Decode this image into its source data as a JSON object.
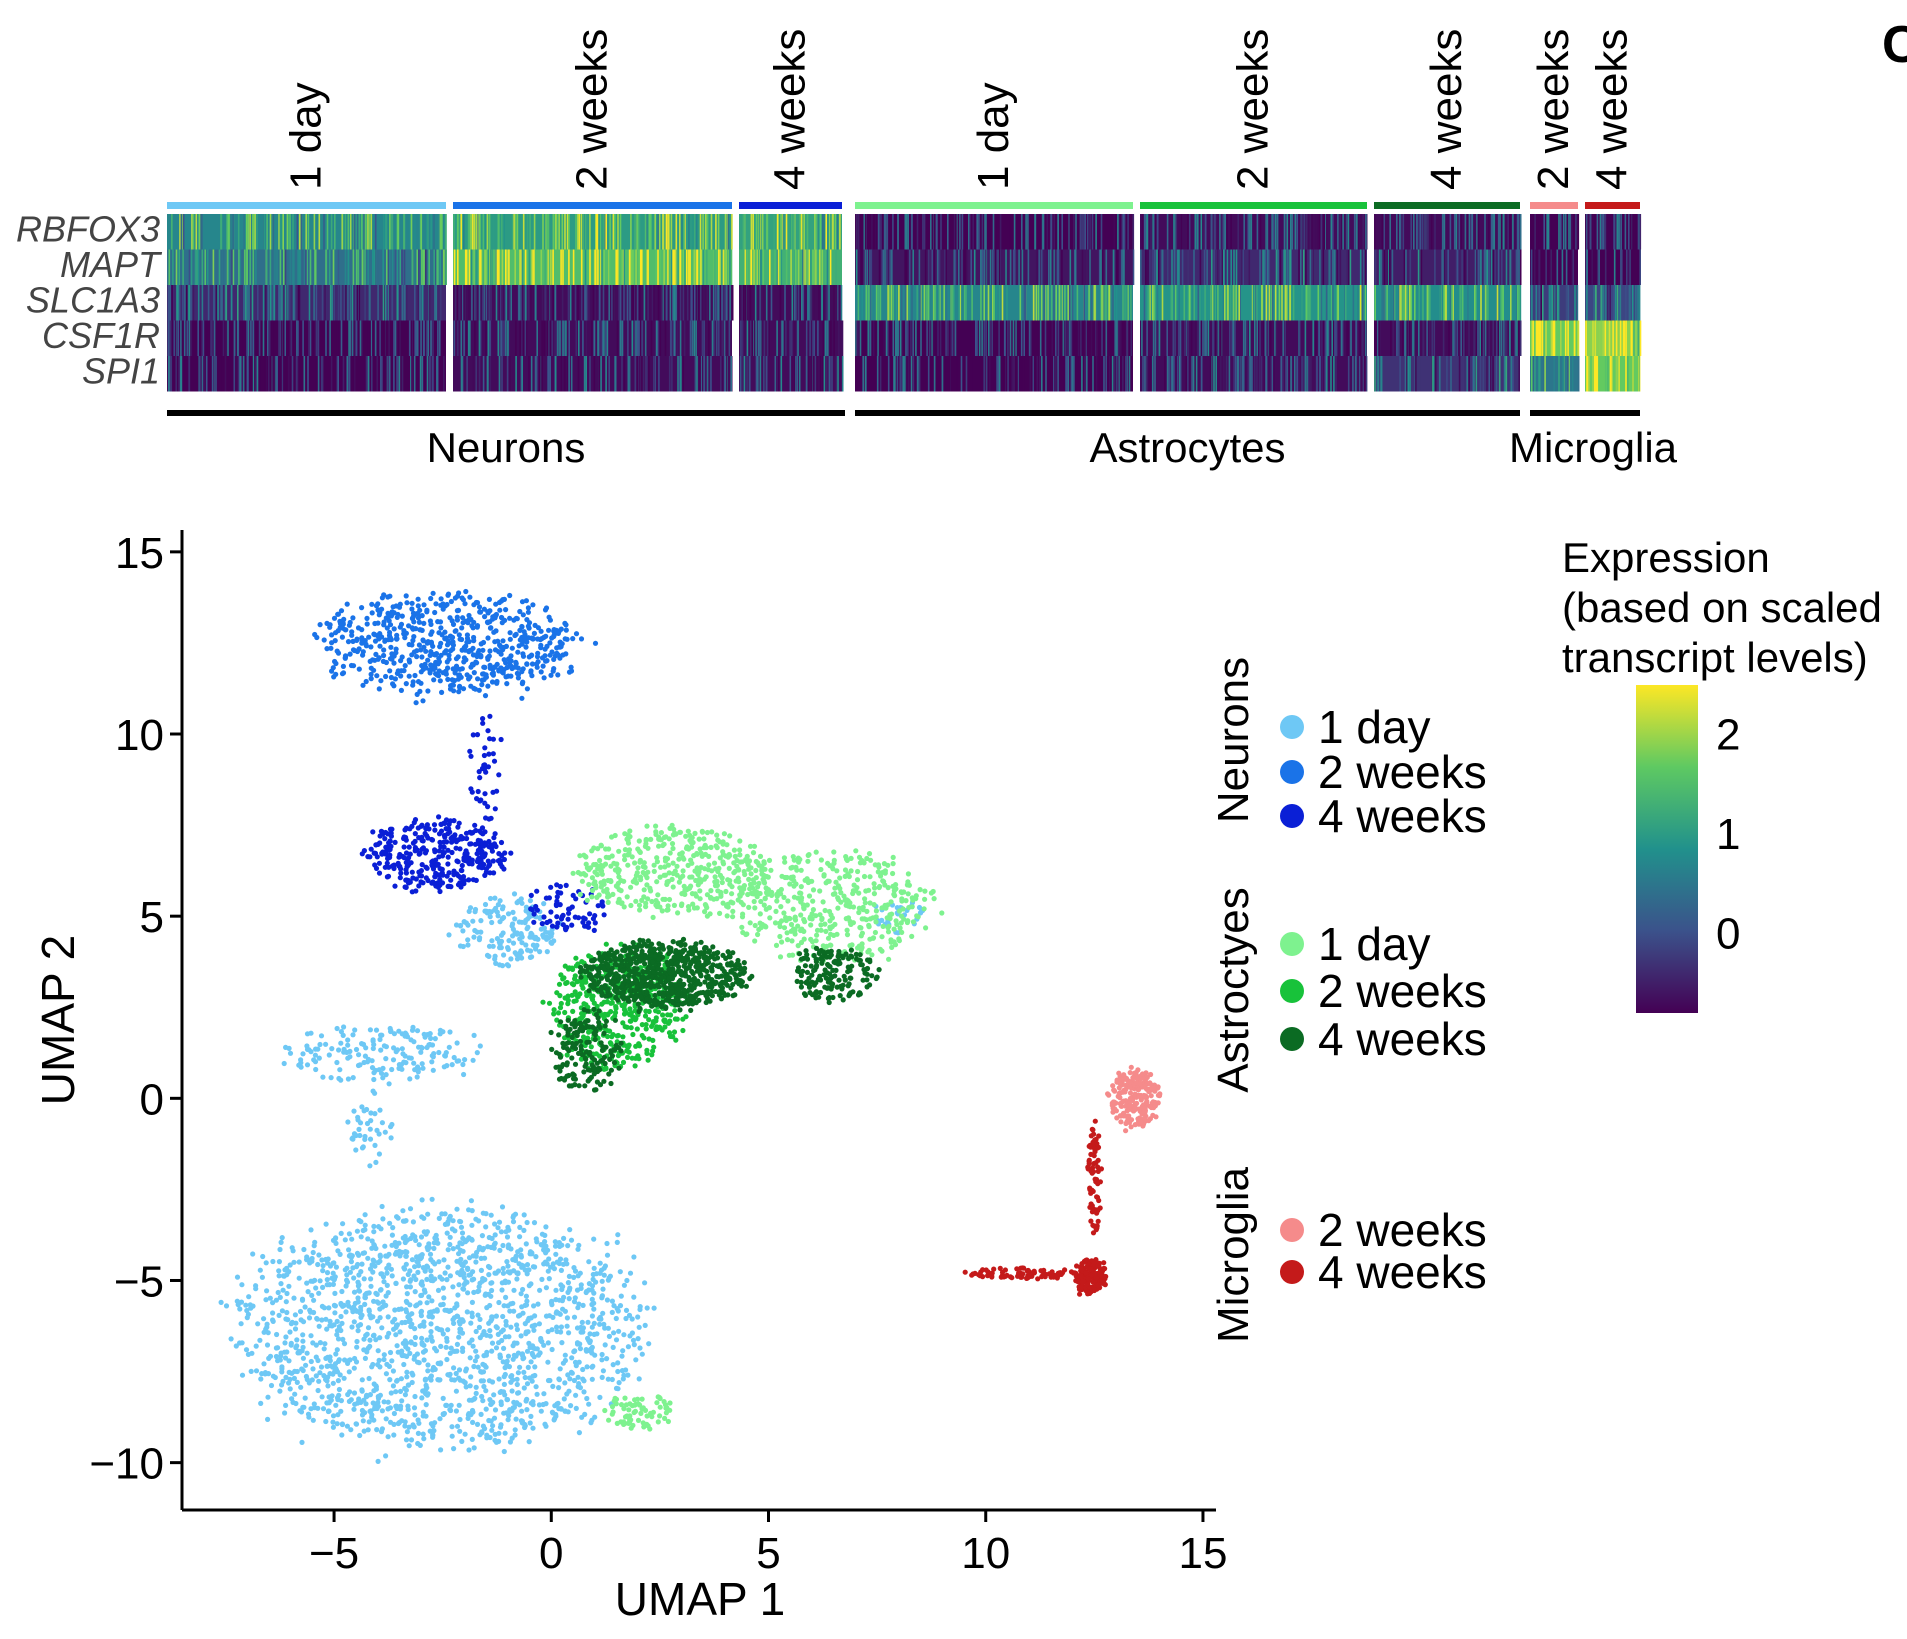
{
  "panel_letter": "C",
  "chart_data": [
    {
      "type": "heatmap",
      "genes": [
        "RBFOX3",
        "MAPT",
        "SLC1A3",
        "CSF1R",
        "SPI1"
      ],
      "cell_types": [
        {
          "name": "Neurons",
          "samples": [
            {
              "label": "1 day",
              "color": "#6ec8f5",
              "mean_expression": [
                1.2,
                0.9,
                0.1,
                -0.3,
                -0.3
              ]
            },
            {
              "label": "2 weeks",
              "color": "#1a73e8",
              "mean_expression": [
                1.5,
                2.0,
                -0.2,
                -0.2,
                -0.2
              ]
            },
            {
              "label": "4 weeks",
              "color": "#0a1fd6",
              "mean_expression": [
                1.6,
                1.8,
                -0.2,
                -0.2,
                -0.2
              ]
            }
          ]
        },
        {
          "name": "Astrocytes",
          "samples": [
            {
              "label": "1 day",
              "color": "#7ef28f",
              "mean_expression": [
                -0.3,
                -0.1,
                1.2,
                -0.3,
                -0.3
              ]
            },
            {
              "label": "2 weeks",
              "color": "#18c23a",
              "mean_expression": [
                -0.2,
                0.1,
                1.4,
                -0.2,
                -0.2
              ]
            },
            {
              "label": "4 weeks",
              "color": "#0b6b23",
              "mean_expression": [
                -0.2,
                0.0,
                1.3,
                -0.2,
                0.2
              ]
            }
          ]
        },
        {
          "name": "Microglia",
          "samples": [
            {
              "label": "2 weeks",
              "color": "#f58b8b",
              "mean_expression": [
                -0.3,
                -0.3,
                0.3,
                2.2,
                1.0
              ]
            },
            {
              "label": "4 weeks",
              "color": "#c41a1a",
              "mean_expression": [
                -0.3,
                -0.3,
                0.4,
                2.4,
                2.2
              ]
            }
          ]
        }
      ]
    },
    {
      "type": "scatter",
      "xlabel": "UMAP 1",
      "ylabel": "UMAP 2",
      "xlim": [
        -8.5,
        15.3
      ],
      "ylim": [
        -11.3,
        15.6
      ],
      "xticks": [
        -5,
        0,
        5,
        10,
        15
      ],
      "xtick_labels": [
        "−5",
        "0",
        "5",
        "10",
        "15"
      ],
      "yticks": [
        15,
        10,
        5,
        0,
        -5,
        -10
      ],
      "ytick_labels": [
        "15",
        "10",
        "5",
        "0",
        "−5",
        "−10"
      ],
      "series": [
        {
          "name": "Neurons 1 day",
          "color": "#6ec8f5",
          "clusters": [
            {
              "cx": -2.6,
              "cy": -6.3,
              "rx": 4.6,
              "ry": 3.3,
              "n": 1700
            },
            {
              "cx": 4.3,
              "cy": 11.5,
              "rx": 0.2,
              "ry": 0.2,
              "n": 0
            },
            {
              "cx": -1.0,
              "cy": 4.6,
              "rx": 1.2,
              "ry": 0.9,
              "n": 160
            },
            {
              "cx": -3.9,
              "cy": 1.2,
              "rx": 2.2,
              "ry": 0.8,
              "n": 170
            },
            {
              "cx": 8.0,
              "cy": 5.0,
              "rx": 0.6,
              "ry": 0.5,
              "n": 30
            },
            {
              "cx": -4.1,
              "cy": -0.9,
              "rx": 0.5,
              "ry": 1.0,
              "n": 40
            }
          ]
        },
        {
          "name": "Neurons 2 weeks",
          "color": "#1a73e8",
          "clusters": [
            {
              "cx": -2.4,
              "cy": 12.5,
              "rx": 2.9,
              "ry": 1.4,
              "n": 650
            }
          ]
        },
        {
          "name": "Neurons 4 weeks",
          "color": "#0a1fd6",
          "clusters": [
            {
              "cx": -2.6,
              "cy": 6.7,
              "rx": 1.6,
              "ry": 1.0,
              "n": 340
            },
            {
              "cx": -1.5,
              "cy": 9.2,
              "rx": 0.4,
              "ry": 1.6,
              "n": 40
            },
            {
              "cx": 0.4,
              "cy": 5.2,
              "rx": 1.0,
              "ry": 0.7,
              "n": 70
            }
          ]
        },
        {
          "name": "Astrocytes 1 day",
          "color": "#7ef28f",
          "clusters": [
            {
              "cx": 2.8,
              "cy": 6.2,
              "rx": 2.2,
              "ry": 1.2,
              "n": 420
            },
            {
              "cx": 6.5,
              "cy": 5.3,
              "rx": 2.3,
              "ry": 1.5,
              "n": 420
            },
            {
              "cx": 2.0,
              "cy": -8.6,
              "rx": 0.8,
              "ry": 0.5,
              "n": 70
            }
          ]
        },
        {
          "name": "Astrocytes 2 weeks",
          "color": "#18c23a",
          "clusters": [
            {
              "cx": 1.5,
              "cy": 2.5,
              "rx": 1.6,
              "ry": 1.6,
              "n": 480
            }
          ]
        },
        {
          "name": "Astrocytes 4 weeks",
          "color": "#0b6b23",
          "clusters": [
            {
              "cx": 2.6,
              "cy": 3.4,
              "rx": 1.9,
              "ry": 0.9,
              "n": 720
            },
            {
              "cx": 6.5,
              "cy": 3.4,
              "rx": 1.0,
              "ry": 0.8,
              "n": 160
            },
            {
              "cx": 0.8,
              "cy": 1.3,
              "rx": 0.8,
              "ry": 1.2,
              "n": 150
            }
          ]
        },
        {
          "name": "Microglia 2 weeks",
          "color": "#f58b8b",
          "clusters": [
            {
              "cx": 13.4,
              "cy": 0.0,
              "rx": 0.6,
              "ry": 0.8,
              "n": 220
            }
          ]
        },
        {
          "name": "Microglia 4 weeks",
          "color": "#c41a1a",
          "clusters": [
            {
              "cx": 12.4,
              "cy": -4.9,
              "rx": 0.35,
              "ry": 0.5,
              "n": 170
            },
            {
              "cx": 12.5,
              "cy": -2.2,
              "rx": 0.15,
              "ry": 1.6,
              "n": 70
            },
            {
              "cx": 10.8,
              "cy": -4.8,
              "rx": 1.2,
              "ry": 0.15,
              "n": 80
            }
          ]
        }
      ]
    }
  ],
  "legend": {
    "groups": [
      {
        "name": "Neurons",
        "items": [
          {
            "label": "1 day",
            "color": "#6ec8f5"
          },
          {
            "label": "2 weeks",
            "color": "#1a73e8"
          },
          {
            "label": "4 weeks",
            "color": "#0a1fd6"
          }
        ]
      },
      {
        "name": "Astroctyes",
        "items": [
          {
            "label": "1 day",
            "color": "#7ef28f"
          },
          {
            "label": "2 weeks",
            "color": "#18c23a"
          },
          {
            "label": "4 weeks",
            "color": "#0b6b23"
          }
        ]
      },
      {
        "name": "Microglia",
        "items": [
          {
            "label": "2 weeks",
            "color": "#f58b8b"
          },
          {
            "label": "4 weeks",
            "color": "#c41a1a"
          }
        ]
      }
    ]
  },
  "colorbar": {
    "title_lines": [
      "Expression",
      "(based on scaled",
      "transcript levels)"
    ],
    "range": [
      -0.8,
      2.5
    ],
    "ticks": [
      2,
      1,
      0
    ],
    "tick_labels": [
      "2",
      "1",
      "0"
    ],
    "colors": [
      "#440154",
      "#3b528b",
      "#21918c",
      "#5ec962",
      "#fde725"
    ]
  }
}
